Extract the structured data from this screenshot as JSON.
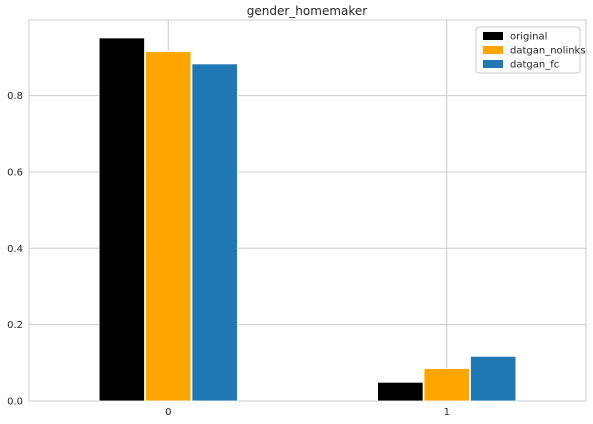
{
  "chart_data": {
    "type": "bar",
    "title": "gender_homemaker",
    "xlabel": "",
    "ylabel": "",
    "categories": [
      "0",
      "1"
    ],
    "series": [
      {
        "name": "original",
        "values": [
          0.951,
          0.049
        ],
        "color": "#000000"
      },
      {
        "name": "datgan_nolinks",
        "values": [
          0.915,
          0.085
        ],
        "color": "#ffa500"
      },
      {
        "name": "datgan_fc",
        "values": [
          0.883,
          0.117
        ],
        "color": "#1f77b4"
      }
    ],
    "ylim": [
      0,
      0.998
    ],
    "yticks": [
      0.0,
      0.2,
      0.4,
      0.6,
      0.8
    ],
    "ytick_labels": [
      "0.0",
      "0.2",
      "0.4",
      "0.6",
      "0.8"
    ],
    "grid": true,
    "legend_position": "top-right"
  }
}
